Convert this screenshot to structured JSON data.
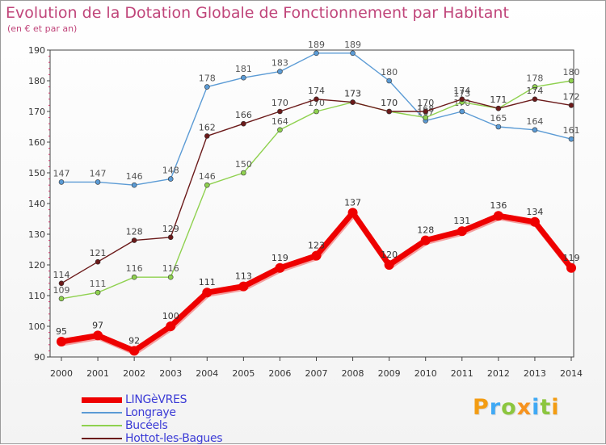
{
  "chart_data": {
    "type": "line",
    "title": "Evolution de la Dotation Globale de Fonctionnement par Habitant",
    "subtitle": "(en € et par an)",
    "categories": [
      "2000",
      "2001",
      "2002",
      "2003",
      "2004",
      "2005",
      "2006",
      "2007",
      "2008",
      "2009",
      "2010",
      "2011",
      "2012",
      "2013",
      "2014"
    ],
    "ylim": [
      90,
      190
    ],
    "yticks": [
      90,
      100,
      110,
      120,
      130,
      140,
      150,
      160,
      170,
      180,
      190
    ],
    "grid": false,
    "legend_position": "bottom-left",
    "series": [
      {
        "name": "LINGèVRES",
        "color": "#ee0000",
        "values": [
          95,
          97,
          92,
          100,
          111,
          113,
          119,
          123,
          137,
          120,
          128,
          131,
          136,
          134,
          119
        ]
      },
      {
        "name": "Longraye",
        "color": "#5b9bd5",
        "values": [
          147,
          147,
          146,
          148,
          178,
          181,
          183,
          189,
          189,
          180,
          167,
          170,
          165,
          164,
          161
        ]
      },
      {
        "name": "Bucéels",
        "color": "#8fd14f",
        "values": [
          109,
          111,
          116,
          116,
          146,
          150,
          164,
          170,
          173,
          170,
          168,
          173,
          171,
          178,
          180
        ]
      },
      {
        "name": "Hottot-les-Bagues",
        "color": "#6b1a1a",
        "values": [
          114,
          121,
          128,
          129,
          162,
          166,
          170,
          174,
          173,
          170,
          170,
          174,
          171,
          174,
          172
        ]
      }
    ]
  },
  "logo": {
    "letters": [
      "P",
      "r",
      "o",
      "x",
      "i",
      "t",
      "i"
    ],
    "colors": [
      "#f39c12",
      "#3fa9f5",
      "#8cc63f",
      "#f7931e",
      "#3fa9f5",
      "#8cc63f",
      "#f39c12"
    ]
  }
}
